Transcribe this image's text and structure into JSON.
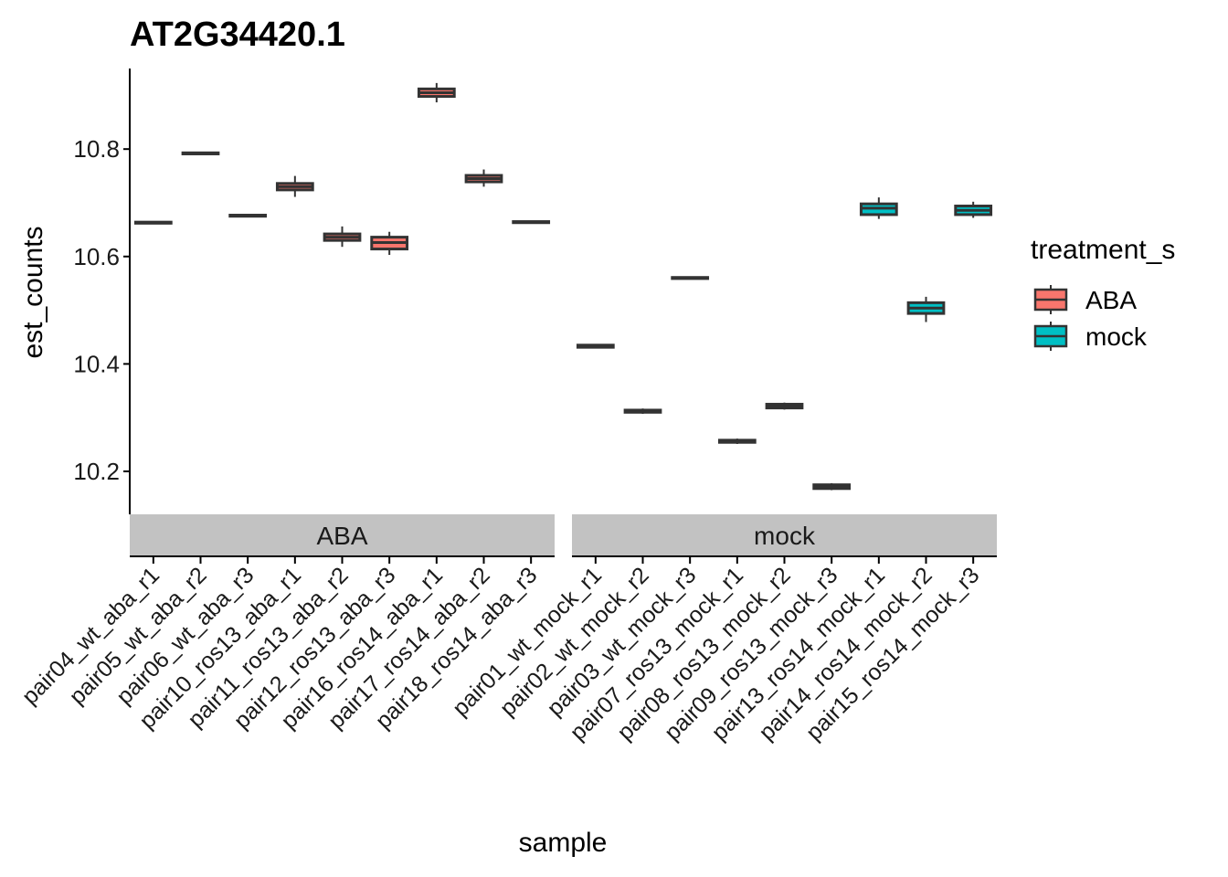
{
  "chart_data": {
    "type": "boxplot",
    "title": "AT2G34420.1",
    "xlabel": "sample",
    "ylabel": "est_counts",
    "ylim": [
      10.12,
      10.95
    ],
    "yticks": [
      10.2,
      10.4,
      10.6,
      10.8
    ],
    "ytick_labels": [
      "10.2",
      "10.4",
      "10.6",
      "10.8"
    ],
    "grid": false,
    "legend": {
      "title": "treatment_s",
      "position": "right",
      "entries": [
        {
          "label": "ABA",
          "color": "#F8766D"
        },
        {
          "label": "mock",
          "color": "#00BFC4"
        }
      ]
    },
    "facets": [
      {
        "label": "ABA",
        "color": "#F8766D",
        "samples": [
          {
            "name": "pair04_wt_aba_r1",
            "lo": 10.661,
            "q1": 10.662,
            "med": 10.663,
            "q3": 10.664,
            "hi": 10.665
          },
          {
            "name": "pair05_wt_aba_r2",
            "lo": 10.79,
            "q1": 10.791,
            "med": 10.792,
            "q3": 10.793,
            "hi": 10.794
          },
          {
            "name": "pair06_wt_aba_r3",
            "lo": 10.674,
            "q1": 10.675,
            "med": 10.676,
            "q3": 10.677,
            "hi": 10.678
          },
          {
            "name": "pair10_ros13_aba_r1",
            "lo": 10.711,
            "q1": 10.724,
            "med": 10.73,
            "q3": 10.736,
            "hi": 10.75
          },
          {
            "name": "pair11_ros13_aba_r2",
            "lo": 10.618,
            "q1": 10.63,
            "med": 10.636,
            "q3": 10.642,
            "hi": 10.656
          },
          {
            "name": "pair12_ros13_aba_r3",
            "lo": 10.603,
            "q1": 10.614,
            "med": 10.626,
            "q3": 10.636,
            "hi": 10.646
          },
          {
            "name": "pair16_ros14_aba_r1",
            "lo": 10.887,
            "q1": 10.898,
            "med": 10.905,
            "q3": 10.912,
            "hi": 10.923
          },
          {
            "name": "pair17_ros14_aba_r2",
            "lo": 10.73,
            "q1": 10.739,
            "med": 10.745,
            "q3": 10.751,
            "hi": 10.762
          },
          {
            "name": "pair18_ros14_aba_r3",
            "lo": 10.662,
            "q1": 10.663,
            "med": 10.664,
            "q3": 10.665,
            "hi": 10.666
          }
        ]
      },
      {
        "label": "mock",
        "color": "#00BFC4",
        "samples": [
          {
            "name": "pair01_wt_mock_r1",
            "lo": 10.429,
            "q1": 10.431,
            "med": 10.433,
            "q3": 10.435,
            "hi": 10.437
          },
          {
            "name": "pair02_wt_mock_r2",
            "lo": 10.307,
            "q1": 10.31,
            "med": 10.312,
            "q3": 10.314,
            "hi": 10.317
          },
          {
            "name": "pair03_wt_mock_r3",
            "lo": 10.558,
            "q1": 10.559,
            "med": 10.56,
            "q3": 10.561,
            "hi": 10.562
          },
          {
            "name": "pair07_ros13_mock_r1",
            "lo": 10.251,
            "q1": 10.254,
            "med": 10.256,
            "q3": 10.258,
            "hi": 10.261
          },
          {
            "name": "pair08_ros13_mock_r2",
            "lo": 10.315,
            "q1": 10.318,
            "med": 10.321,
            "q3": 10.325,
            "hi": 10.328
          },
          {
            "name": "pair09_ros13_mock_r3",
            "lo": 10.165,
            "q1": 10.168,
            "med": 10.171,
            "q3": 10.175,
            "hi": 10.178
          },
          {
            "name": "pair13_ros14_mock_r1",
            "lo": 10.67,
            "q1": 10.678,
            "med": 10.69,
            "q3": 10.698,
            "hi": 10.71
          },
          {
            "name": "pair14_ros14_mock_r2",
            "lo": 10.478,
            "q1": 10.494,
            "med": 10.504,
            "q3": 10.514,
            "hi": 10.525
          },
          {
            "name": "pair15_ros14_mock_r3",
            "lo": 10.672,
            "q1": 10.678,
            "med": 10.686,
            "q3": 10.694,
            "hi": 10.702
          }
        ]
      }
    ]
  }
}
